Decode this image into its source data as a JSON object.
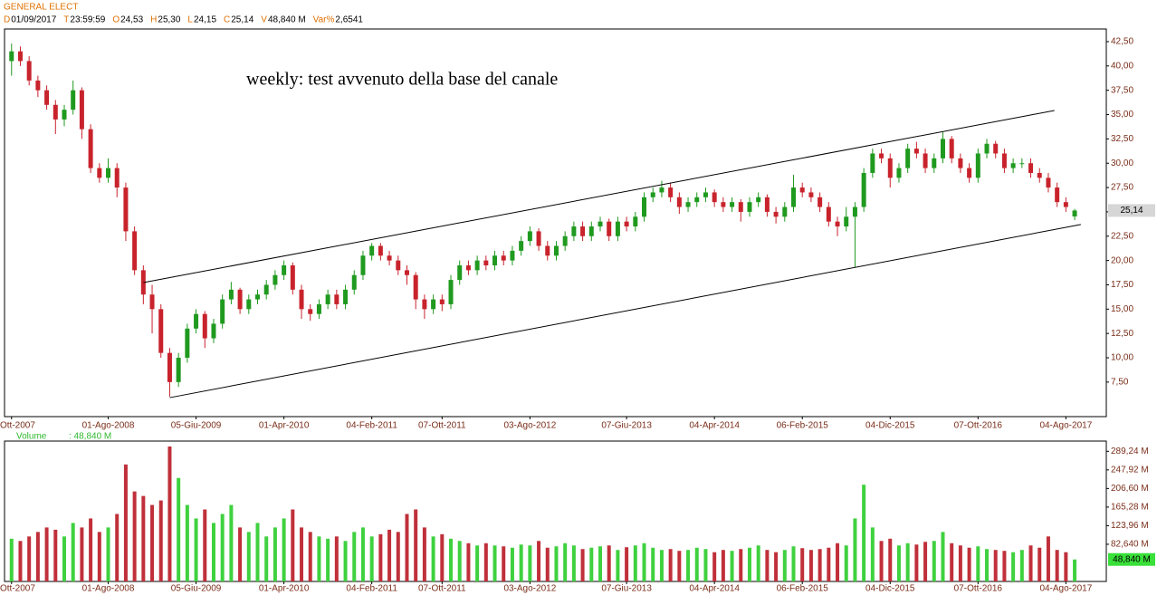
{
  "header": {
    "symbol": "GENERAL ELECT",
    "fields": [
      {
        "key": "D",
        "text": "01/09/2017"
      },
      {
        "key": "T",
        "text": "23:59:59"
      },
      {
        "key": "O",
        "text": "24,53"
      },
      {
        "key": "H",
        "text": "25,30"
      },
      {
        "key": "L",
        "text": "24,15"
      },
      {
        "key": "C",
        "text": "25,14"
      },
      {
        "key": "V",
        "text": "48,840 M"
      },
      {
        "key": "Var%",
        "text": "2,6541"
      }
    ]
  },
  "chart_data": [
    {
      "type": "candlestick",
      "annotation": "weekly: test avvenuto della base del canale",
      "colors": {
        "up": "#1f9a1f",
        "down": "#c8232c"
      },
      "open": [
        40.5,
        41.5,
        40.5,
        38.5,
        37.5,
        36.0,
        34.5,
        35.5,
        37.5,
        33.5,
        29.5,
        28.5,
        29.5,
        27.5,
        23.0,
        19.0,
        16.5,
        15.0,
        10.5,
        7.5,
        10.0,
        13.0,
        14.5,
        12.0,
        13.5,
        16.0,
        17.0,
        15.0,
        16.0,
        16.5,
        17.5,
        18.5,
        19.5,
        17.0,
        15.0,
        14.5,
        15.5,
        16.5,
        15.5,
        17.0,
        18.5,
        20.5,
        21.5,
        20.5,
        20.0,
        19.0,
        18.5,
        16.0,
        15.0,
        16.0,
        15.5,
        18.0,
        19.5,
        19.0,
        20.0,
        19.5,
        20.5,
        20.0,
        21.0,
        22.0,
        23.0,
        21.5,
        20.5,
        21.5,
        22.5,
        23.5,
        22.5,
        23.5,
        24.0,
        22.5,
        24.0,
        23.5,
        24.5,
        26.5,
        27.0,
        27.5,
        26.5,
        25.5,
        26.0,
        26.5,
        27.0,
        26.0,
        25.5,
        26.0,
        25.0,
        26.0,
        26.5,
        25.0,
        24.5,
        25.5,
        27.5,
        27.0,
        26.5,
        25.5,
        24.0,
        23.5,
        24.5,
        25.5,
        29.0,
        31.0,
        30.5,
        28.5,
        29.5,
        31.5,
        31.0,
        29.5,
        30.5,
        32.5,
        30.5,
        29.5,
        28.5,
        31.0,
        32.0,
        31.0,
        29.5,
        30.0,
        30.0,
        29.0,
        28.5,
        27.5,
        26.0,
        24.53
      ],
      "high": [
        42.3,
        42.0,
        41.0,
        39.0,
        38.0,
        36.5,
        36.0,
        38.5,
        37.8,
        34.0,
        30.0,
        30.5,
        30.0,
        28.0,
        23.5,
        19.5,
        17.5,
        15.5,
        11.0,
        10.5,
        13.5,
        15.0,
        14.8,
        14.0,
        16.5,
        17.8,
        17.2,
        16.5,
        17.0,
        18.0,
        19.0,
        20.0,
        19.8,
        17.5,
        15.5,
        16.0,
        17.0,
        17.0,
        17.5,
        19.0,
        21.0,
        21.8,
        21.8,
        21.0,
        20.5,
        19.5,
        18.8,
        16.5,
        16.5,
        16.5,
        18.5,
        20.0,
        20.0,
        20.5,
        20.5,
        21.0,
        21.0,
        21.5,
        22.5,
        23.5,
        23.3,
        22.0,
        22.0,
        23.0,
        24.0,
        24.0,
        24.0,
        24.5,
        24.3,
        24.5,
        24.5,
        25.0,
        27.0,
        27.5,
        28.2,
        28.0,
        27.0,
        26.5,
        27.0,
        27.5,
        27.3,
        26.5,
        26.5,
        26.3,
        26.5,
        27.0,
        26.8,
        25.5,
        26.0,
        28.8,
        28.0,
        27.5,
        27.0,
        26.0,
        24.5,
        25.5,
        26.0,
        29.5,
        31.5,
        31.5,
        31.0,
        30.0,
        32.0,
        32.2,
        31.5,
        31.0,
        33.2,
        32.8,
        31.0,
        30.0,
        31.5,
        32.5,
        32.3,
        31.5,
        30.5,
        30.5,
        30.5,
        29.5,
        29.0,
        28.0,
        26.5,
        25.3
      ],
      "low": [
        39.0,
        40.0,
        38.0,
        36.8,
        35.5,
        33.0,
        33.8,
        35.0,
        32.5,
        29.0,
        28.0,
        28.0,
        26.5,
        22.0,
        18.5,
        15.5,
        12.5,
        10.0,
        6.0,
        7.0,
        9.5,
        12.5,
        11.0,
        11.5,
        13.0,
        15.5,
        14.5,
        14.5,
        15.5,
        16.0,
        17.0,
        18.0,
        16.5,
        14.0,
        13.8,
        14.0,
        15.0,
        15.0,
        15.0,
        16.5,
        18.0,
        20.0,
        20.0,
        19.5,
        18.5,
        17.5,
        15.0,
        14.0,
        14.5,
        14.8,
        15.0,
        17.5,
        18.5,
        18.5,
        19.0,
        19.0,
        19.5,
        19.5,
        20.5,
        21.5,
        21.0,
        20.0,
        20.0,
        21.0,
        22.0,
        22.0,
        22.0,
        23.0,
        22.0,
        22.0,
        23.0,
        23.0,
        24.0,
        26.0,
        26.5,
        26.0,
        24.8,
        25.0,
        25.5,
        26.0,
        25.5,
        25.0,
        25.0,
        24.0,
        24.5,
        25.5,
        24.5,
        23.8,
        24.0,
        25.0,
        26.5,
        26.0,
        25.0,
        23.5,
        22.5,
        23.0,
        19.3,
        25.0,
        28.5,
        30.0,
        27.5,
        28.0,
        29.0,
        30.5,
        29.0,
        29.0,
        30.0,
        30.0,
        29.0,
        28.0,
        28.0,
        30.5,
        30.5,
        29.0,
        29.0,
        29.5,
        28.5,
        28.0,
        27.0,
        25.5,
        25.0,
        24.15
      ],
      "close": [
        41.5,
        40.5,
        38.5,
        37.5,
        36.0,
        34.5,
        35.5,
        37.5,
        33.5,
        29.5,
        28.5,
        29.5,
        27.5,
        23.0,
        19.0,
        16.5,
        15.0,
        10.5,
        7.5,
        10.0,
        13.0,
        14.5,
        12.0,
        13.5,
        16.0,
        17.0,
        15.0,
        16.0,
        16.5,
        17.5,
        18.5,
        19.5,
        17.0,
        15.0,
        14.5,
        15.5,
        16.5,
        15.5,
        17.0,
        18.5,
        20.5,
        21.5,
        20.5,
        20.0,
        19.0,
        18.5,
        16.0,
        15.0,
        16.0,
        15.5,
        18.0,
        19.5,
        19.0,
        20.0,
        19.5,
        20.5,
        20.0,
        21.0,
        22.0,
        23.0,
        21.5,
        20.5,
        21.5,
        22.5,
        23.5,
        22.5,
        23.5,
        24.0,
        22.5,
        24.0,
        23.5,
        24.5,
        26.5,
        27.0,
        27.5,
        26.5,
        25.5,
        26.0,
        26.5,
        27.0,
        26.0,
        25.5,
        26.0,
        25.0,
        26.0,
        26.5,
        25.0,
        24.5,
        25.5,
        27.5,
        27.0,
        26.5,
        25.5,
        24.0,
        23.5,
        24.5,
        25.5,
        29.0,
        31.0,
        30.5,
        28.5,
        29.5,
        31.5,
        31.0,
        29.5,
        30.5,
        32.5,
        30.5,
        29.5,
        28.5,
        31.0,
        32.0,
        31.0,
        29.5,
        30.0,
        30.0,
        29.0,
        28.5,
        27.5,
        26.0,
        25.5,
        25.14
      ],
      "last_label": "25,14",
      "channel": [
        {
          "x": [
            15,
            118.7
          ],
          "y": [
            17.73,
            35.42
          ]
        },
        {
          "x": [
            18,
            121.7
          ],
          "y": [
            5.9,
            23.7
          ]
        }
      ],
      "xlim": [
        -0.8,
        124.6
      ],
      "xticks": [
        {
          "value": 0,
          "label": "Ott-2007"
        },
        {
          "value": 11,
          "label": "01-Ago-2008"
        },
        {
          "value": 21,
          "label": "05-Giu-2009"
        },
        {
          "value": 31,
          "label": "01-Apr-2010"
        },
        {
          "value": 41,
          "label": "04-Feb-2011"
        },
        {
          "value": 49,
          "label": "07-Ott-2011"
        },
        {
          "value": 59,
          "label": "03-Ago-2012"
        },
        {
          "value": 70,
          "label": "07-Giu-2013"
        },
        {
          "value": 80,
          "label": "04-Apr-2014"
        },
        {
          "value": 90,
          "label": "06-Feb-2015"
        },
        {
          "value": 100,
          "label": "04-Dic-2015"
        },
        {
          "value": 110,
          "label": "07-Ott-2016"
        },
        {
          "value": 120,
          "label": "04-Ago-2017"
        }
      ],
      "ylim": [
        3.95,
        43.8
      ],
      "yticks": [
        {
          "value": 42.5,
          "label": "42,50"
        },
        {
          "value": 40,
          "label": "40,00"
        },
        {
          "value": 37.5,
          "label": "37,50"
        },
        {
          "value": 35,
          "label": "35,00"
        },
        {
          "value": 32.5,
          "label": "32,50"
        },
        {
          "value": 30,
          "label": "30,00"
        },
        {
          "value": 27.5,
          "label": "27,50"
        },
        {
          "value": 25,
          "label": "25,00"
        },
        {
          "value": 22.5,
          "label": "22,50"
        },
        {
          "value": 20,
          "label": "20,00"
        },
        {
          "value": 17.5,
          "label": "17,50"
        },
        {
          "value": 15,
          "label": "15,00"
        },
        {
          "value": 12.5,
          "label": "12,50"
        },
        {
          "value": 10,
          "label": "10,00"
        },
        {
          "value": 7.5,
          "label": "7,50"
        }
      ]
    },
    {
      "type": "volume",
      "name": "Volume",
      "current_label": ": 48,840 M",
      "last_label": "48,840 M",
      "colors": {
        "up": "#3fd13f",
        "down": "#c0303a"
      },
      "values": [
        95,
        90,
        100,
        110,
        120,
        115,
        100,
        130,
        120,
        140,
        110,
        120,
        150,
        260,
        200,
        190,
        170,
        180,
        300,
        230,
        170,
        140,
        160,
        130,
        150,
        170,
        120,
        110,
        130,
        100,
        120,
        140,
        160,
        120,
        110,
        100,
        95,
        100,
        90,
        110,
        120,
        100,
        105,
        115,
        110,
        150,
        160,
        120,
        100,
        105,
        95,
        90,
        85,
        80,
        85,
        80,
        78,
        75,
        82,
        80,
        90,
        75,
        78,
        85,
        80,
        72,
        75,
        78,
        80,
        70,
        76,
        80,
        85,
        75,
        70,
        72,
        68,
        70,
        75,
        72,
        65,
        70,
        68,
        72,
        75,
        80,
        70,
        65,
        70,
        78,
        74,
        70,
        72,
        75,
        85,
        80,
        140,
        215,
        120,
        90,
        95,
        80,
        85,
        82,
        88,
        90,
        110,
        85,
        80,
        75,
        78,
        72,
        70,
        68,
        65,
        70,
        80,
        75,
        100,
        70,
        65,
        48.84
      ],
      "ylim": [
        0,
        312
      ],
      "yticks": [
        {
          "value": 289.24,
          "label": "289,24 M"
        },
        {
          "value": 247.92,
          "label": "247,92 M"
        },
        {
          "value": 206.6,
          "label": "206,60 M"
        },
        {
          "value": 165.28,
          "label": "165,28 M"
        },
        {
          "value": 123.96,
          "label": "123,96 M"
        },
        {
          "value": 82.64,
          "label": "82,640 M"
        }
      ]
    }
  ]
}
